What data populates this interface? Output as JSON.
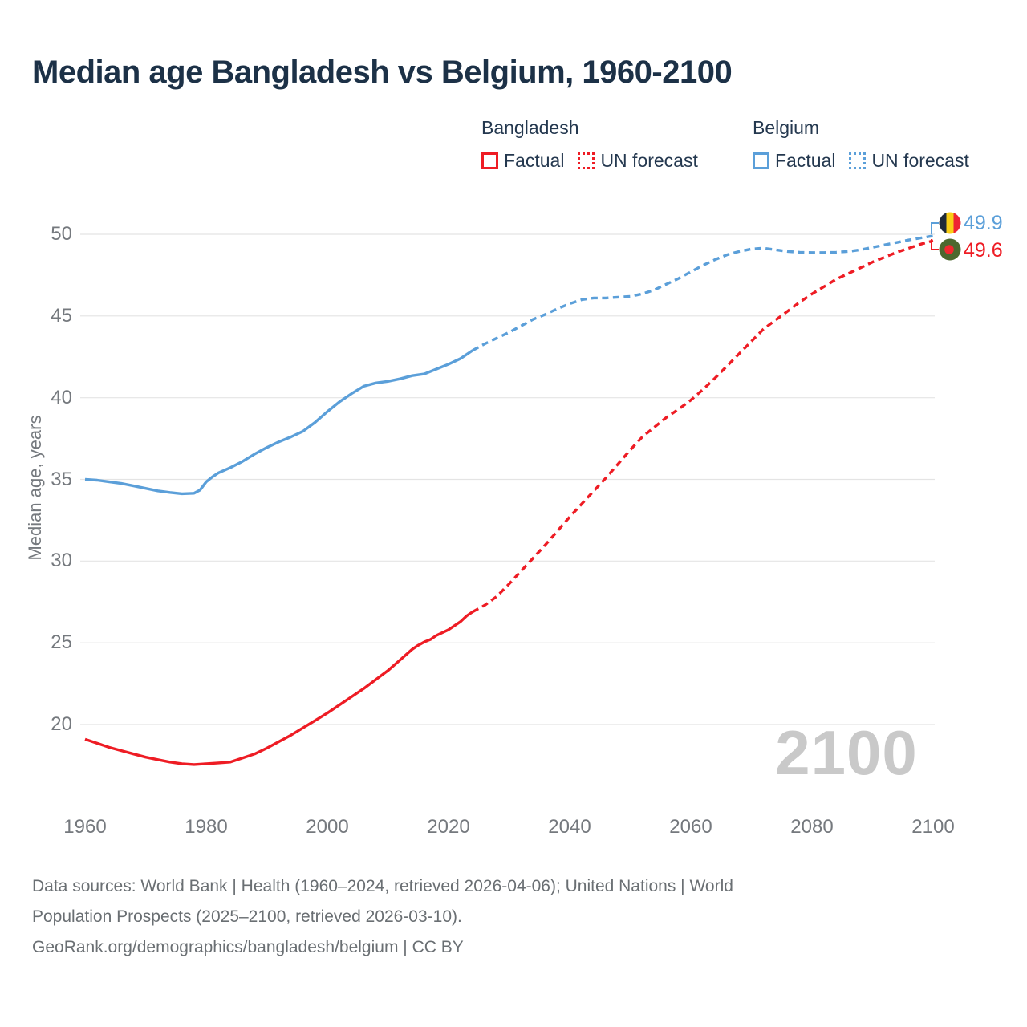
{
  "title": "Median age Bangladesh vs Belgium, 1960-2100",
  "watermark": "2100",
  "legend": {
    "groups": [
      {
        "label": "Bangladesh",
        "color": "#ee1c24",
        "items": [
          {
            "label": "Factual",
            "style": "solid"
          },
          {
            "label": "UN forecast",
            "style": "dotted"
          }
        ]
      },
      {
        "label": "Belgium",
        "color": "#5b9fd9",
        "items": [
          {
            "label": "Factual",
            "style": "solid"
          },
          {
            "label": "UN forecast",
            "style": "dotted"
          }
        ]
      }
    ]
  },
  "end_labels": [
    {
      "series": "Belgium",
      "value": "49.9",
      "color": "#5b9fd9",
      "flag": "belgium-flag"
    },
    {
      "series": "Bangladesh",
      "value": "49.6",
      "color": "#ee1c24",
      "flag": "bangladesh-flag"
    }
  ],
  "footer": {
    "lines": [
      "Data sources: World Bank | Health (1960–2024, retrieved 2026-04-06); United Nations | World",
      "Population Prospects (2025–2100, retrieved 2026-03-10).",
      "GeoRank.org/demographics/bangladesh/belgium | CC BY"
    ]
  },
  "chart_data": {
    "type": "line",
    "title": "Median age Bangladesh vs Belgium, 1960-2100",
    "xlabel": "",
    "ylabel": "Median age, years",
    "x_ticks": [
      1960,
      1980,
      2000,
      2020,
      2040,
      2060,
      2080,
      2100
    ],
    "y_ticks": [
      20,
      25,
      30,
      35,
      40,
      45,
      50
    ],
    "xlim": [
      1960,
      2100
    ],
    "ylim": [
      15,
      52
    ],
    "grid": true,
    "legend_position": "top",
    "series": [
      {
        "name": "Bangladesh Factual",
        "color": "#ee1c24",
        "style": "solid",
        "points": [
          [
            1960,
            19.1
          ],
          [
            1962,
            18.85
          ],
          [
            1964,
            18.6
          ],
          [
            1966,
            18.4
          ],
          [
            1968,
            18.2
          ],
          [
            1970,
            18.0
          ],
          [
            1972,
            17.85
          ],
          [
            1974,
            17.7
          ],
          [
            1976,
            17.6
          ],
          [
            1978,
            17.55
          ],
          [
            1980,
            17.6
          ],
          [
            1982,
            17.65
          ],
          [
            1984,
            17.7
          ],
          [
            1986,
            17.95
          ],
          [
            1988,
            18.2
          ],
          [
            1990,
            18.55
          ],
          [
            1992,
            18.95
          ],
          [
            1994,
            19.35
          ],
          [
            1996,
            19.8
          ],
          [
            1998,
            20.25
          ],
          [
            2000,
            20.7
          ],
          [
            2002,
            21.2
          ],
          [
            2004,
            21.7
          ],
          [
            2006,
            22.2
          ],
          [
            2008,
            22.75
          ],
          [
            2010,
            23.3
          ],
          [
            2012,
            23.95
          ],
          [
            2014,
            24.6
          ],
          [
            2015,
            24.85
          ],
          [
            2016,
            25.05
          ],
          [
            2017,
            25.2
          ],
          [
            2018,
            25.45
          ],
          [
            2020,
            25.8
          ],
          [
            2022,
            26.3
          ],
          [
            2023,
            26.65
          ],
          [
            2024,
            26.9
          ]
        ]
      },
      {
        "name": "Bangladesh UN forecast",
        "color": "#ee1c24",
        "style": "dashed",
        "points": [
          [
            2024,
            26.9
          ],
          [
            2026,
            27.3
          ],
          [
            2028,
            27.85
          ],
          [
            2030,
            28.6
          ],
          [
            2032,
            29.4
          ],
          [
            2034,
            30.2
          ],
          [
            2036,
            31.0
          ],
          [
            2038,
            31.85
          ],
          [
            2040,
            32.7
          ],
          [
            2042,
            33.5
          ],
          [
            2044,
            34.3
          ],
          [
            2046,
            35.1
          ],
          [
            2048,
            35.95
          ],
          [
            2050,
            36.8
          ],
          [
            2052,
            37.6
          ],
          [
            2054,
            38.2
          ],
          [
            2056,
            38.8
          ],
          [
            2058,
            39.3
          ],
          [
            2060,
            39.85
          ],
          [
            2062,
            40.5
          ],
          [
            2064,
            41.2
          ],
          [
            2066,
            41.95
          ],
          [
            2068,
            42.7
          ],
          [
            2070,
            43.45
          ],
          [
            2072,
            44.2
          ],
          [
            2074,
            44.75
          ],
          [
            2076,
            45.3
          ],
          [
            2078,
            45.85
          ],
          [
            2080,
            46.35
          ],
          [
            2082,
            46.8
          ],
          [
            2084,
            47.25
          ],
          [
            2086,
            47.6
          ],
          [
            2088,
            47.95
          ],
          [
            2090,
            48.3
          ],
          [
            2092,
            48.6
          ],
          [
            2094,
            48.9
          ],
          [
            2096,
            49.15
          ],
          [
            2098,
            49.4
          ],
          [
            2100,
            49.6
          ]
        ]
      },
      {
        "name": "Belgium Factual",
        "color": "#5b9fd9",
        "style": "solid",
        "points": [
          [
            1960,
            35.0
          ],
          [
            1962,
            34.95
          ],
          [
            1964,
            34.85
          ],
          [
            1966,
            34.75
          ],
          [
            1968,
            34.6
          ],
          [
            1970,
            34.45
          ],
          [
            1972,
            34.3
          ],
          [
            1974,
            34.2
          ],
          [
            1976,
            34.12
          ],
          [
            1978,
            34.15
          ],
          [
            1979,
            34.35
          ],
          [
            1980,
            34.85
          ],
          [
            1981,
            35.15
          ],
          [
            1982,
            35.4
          ],
          [
            1984,
            35.72
          ],
          [
            1986,
            36.1
          ],
          [
            1988,
            36.55
          ],
          [
            1990,
            36.95
          ],
          [
            1992,
            37.3
          ],
          [
            1994,
            37.6
          ],
          [
            1996,
            37.95
          ],
          [
            1998,
            38.5
          ],
          [
            2000,
            39.15
          ],
          [
            2002,
            39.75
          ],
          [
            2004,
            40.25
          ],
          [
            2006,
            40.7
          ],
          [
            2008,
            40.9
          ],
          [
            2010,
            41.0
          ],
          [
            2012,
            41.15
          ],
          [
            2014,
            41.35
          ],
          [
            2016,
            41.45
          ],
          [
            2018,
            41.75
          ],
          [
            2020,
            42.05
          ],
          [
            2022,
            42.4
          ],
          [
            2024,
            42.9
          ]
        ]
      },
      {
        "name": "Belgium UN forecast",
        "color": "#5b9fd9",
        "style": "dashed",
        "points": [
          [
            2024,
            42.9
          ],
          [
            2026,
            43.3
          ],
          [
            2028,
            43.65
          ],
          [
            2030,
            44.0
          ],
          [
            2032,
            44.4
          ],
          [
            2034,
            44.8
          ],
          [
            2036,
            45.1
          ],
          [
            2038,
            45.45
          ],
          [
            2040,
            45.75
          ],
          [
            2042,
            46.0
          ],
          [
            2044,
            46.1
          ],
          [
            2046,
            46.1
          ],
          [
            2048,
            46.15
          ],
          [
            2050,
            46.2
          ],
          [
            2052,
            46.35
          ],
          [
            2054,
            46.6
          ],
          [
            2056,
            46.95
          ],
          [
            2058,
            47.3
          ],
          [
            2060,
            47.7
          ],
          [
            2062,
            48.1
          ],
          [
            2064,
            48.45
          ],
          [
            2066,
            48.75
          ],
          [
            2068,
            48.95
          ],
          [
            2070,
            49.1
          ],
          [
            2072,
            49.15
          ],
          [
            2074,
            49.05
          ],
          [
            2076,
            48.95
          ],
          [
            2078,
            48.9
          ],
          [
            2080,
            48.88
          ],
          [
            2082,
            48.88
          ],
          [
            2084,
            48.9
          ],
          [
            2086,
            48.95
          ],
          [
            2088,
            49.05
          ],
          [
            2090,
            49.2
          ],
          [
            2092,
            49.35
          ],
          [
            2094,
            49.5
          ],
          [
            2096,
            49.65
          ],
          [
            2098,
            49.78
          ],
          [
            2100,
            49.9
          ]
        ]
      }
    ]
  }
}
